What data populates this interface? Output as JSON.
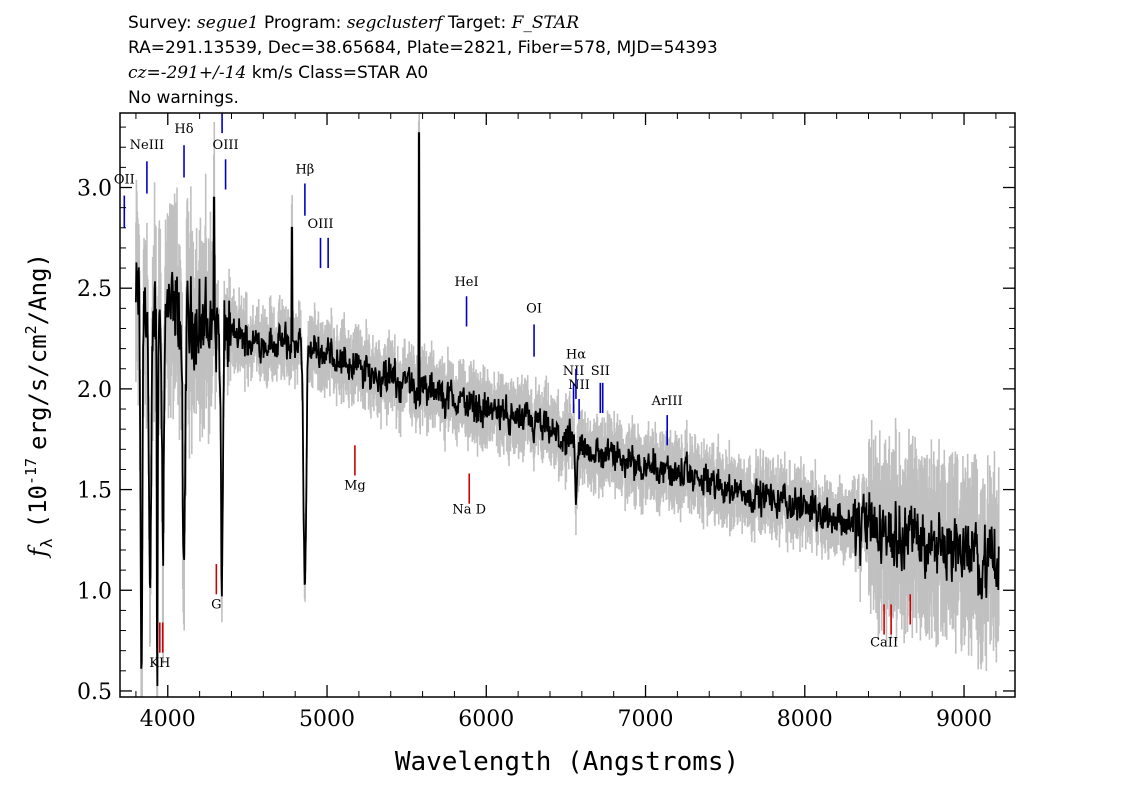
{
  "header": {
    "survey_label": "Survey:",
    "survey": "segue1",
    "program_label": "Program:",
    "program": "segclusterf",
    "target_label": "Target:",
    "target": "F_STAR",
    "line2": "RA=291.13539, Dec=38.65684, Plate=2821, Fiber=578, MJD=54393",
    "cz_label": "cz=",
    "cz_value": "-291+/-14",
    "cz_unit": "km/s Class=STAR A0",
    "warnings": "No warnings."
  },
  "colors": {
    "flux": "#000000",
    "error": "#c0c0c0",
    "emission": "#0000c8",
    "absorption": "#d00000"
  },
  "chart_data": {
    "type": "line",
    "title": "",
    "xlabel": "Wavelength (Angstroms)",
    "ylabel_main": "f",
    "ylabel_sub": "λ",
    "ylabel_rest": "(10",
    "ylabel_exp": "-17",
    "ylabel_unit": "erg/s/cm",
    "ylabel_sq": "2",
    "ylabel_tail": "/Ang)",
    "xlim": [
      3700,
      9320
    ],
    "ylim": [
      0.47,
      3.37
    ],
    "xticks": [
      4000,
      5000,
      6000,
      7000,
      8000,
      9000
    ],
    "xtick_labels": [
      "4000",
      "5000",
      "6000",
      "7000",
      "8000",
      "9000"
    ],
    "yticks": [
      0.5,
      1.0,
      1.5,
      2.0,
      2.5,
      3.0
    ],
    "ytick_labels": [
      "0.5",
      "1.0",
      "1.5",
      "2.0",
      "2.5",
      "3.0"
    ],
    "continuum": [
      [
        3800,
        2.45
      ],
      [
        4000,
        2.38
      ],
      [
        4300,
        2.3
      ],
      [
        4500,
        2.24
      ],
      [
        4800,
        2.22
      ],
      [
        5000,
        2.18
      ],
      [
        5200,
        2.1
      ],
      [
        5500,
        2.02
      ],
      [
        5800,
        1.95
      ],
      [
        6000,
        1.9
      ],
      [
        6300,
        1.82
      ],
      [
        6500,
        1.74
      ],
      [
        6700,
        1.68
      ],
      [
        7000,
        1.63
      ],
      [
        7200,
        1.58
      ],
      [
        7500,
        1.51
      ],
      [
        7800,
        1.45
      ],
      [
        8000,
        1.42
      ],
      [
        8300,
        1.33
      ],
      [
        8600,
        1.28
      ],
      [
        8800,
        1.25
      ],
      [
        9000,
        1.2
      ],
      [
        9200,
        1.12
      ]
    ],
    "absorption_features": [
      [
        3835,
        0.5,
        8
      ],
      [
        3889,
        0.8,
        10
      ],
      [
        3970,
        1.3,
        8
      ],
      [
        4101,
        0.95,
        10
      ],
      [
        4340,
        0.95,
        9
      ],
      [
        4861,
        1.0,
        12
      ],
      [
        6563,
        1.4,
        9
      ],
      [
        3934,
        0.4,
        4
      ]
    ],
    "spikes": [
      [
        5577,
        3.27
      ],
      [
        4290,
        2.95
      ],
      [
        4780,
        2.8
      ]
    ],
    "emission_lines": [
      {
        "label": "OII",
        "wave": 3727,
        "y0": 2.8,
        "y1": 2.96,
        "label_y": 3.02
      },
      {
        "label": "NeIII",
        "wave": 3869,
        "y0": 2.97,
        "y1": 3.13,
        "label_y": 3.19
      },
      {
        "label": "Hδ",
        "wave": 4102,
        "y0": 3.05,
        "y1": 3.21,
        "label_y": 3.27
      },
      {
        "label": "",
        "wave": 4341,
        "y0": 3.27,
        "y1": 3.37,
        "label_y": 0
      },
      {
        "label": "OIII",
        "wave": 4363,
        "y0": 2.99,
        "y1": 3.14,
        "label_y": 3.19
      },
      {
        "label": "Hβ",
        "wave": 4861,
        "y0": 2.86,
        "y1": 3.02,
        "label_y": 3.07
      },
      {
        "label": "OIII",
        "wave": 4959,
        "y0": 2.6,
        "y1": 2.75,
        "label_y": 2.8
      },
      {
        "label": "",
        "wave": 5007,
        "y0": 2.6,
        "y1": 2.75,
        "label_y": 0
      },
      {
        "label": "HeI",
        "wave": 5876,
        "y0": 2.31,
        "y1": 2.46,
        "label_y": 2.51
      },
      {
        "label": "OI",
        "wave": 6300,
        "y0": 2.16,
        "y1": 2.32,
        "label_y": 2.38
      },
      {
        "label": "NII",
        "wave": 6548,
        "y0": 1.88,
        "y1": 2.03,
        "label_y": 2.07
      },
      {
        "label": "Hα",
        "wave": 6563,
        "y0": 1.95,
        "y1": 2.1,
        "label_y": 2.15
      },
      {
        "label": "NII",
        "wave": 6583,
        "y0": 1.85,
        "y1": 1.95,
        "label_y": 2.0
      },
      {
        "label": "SII",
        "wave": 6716,
        "y0": 1.88,
        "y1": 2.03,
        "label_y": 2.07
      },
      {
        "label": "",
        "wave": 6731,
        "y0": 1.88,
        "y1": 2.03,
        "label_y": 0
      },
      {
        "label": "ArIII",
        "wave": 7136,
        "y0": 1.72,
        "y1": 1.87,
        "label_y": 1.92
      }
    ],
    "absorption_lines": [
      {
        "label": "KH",
        "wave": 3950,
        "y0": 0.69,
        "y1": 0.84,
        "label_y": 0.62
      },
      {
        "label": "",
        "wave": 3968,
        "y0": 0.69,
        "y1": 0.84,
        "label_y": 0
      },
      {
        "label": "G",
        "wave": 4305,
        "y0": 0.98,
        "y1": 1.13,
        "label_y": 0.91
      },
      {
        "label": "Mg",
        "wave": 5175,
        "y0": 1.57,
        "y1": 1.72,
        "label_y": 1.5
      },
      {
        "label": "Na D",
        "wave": 5893,
        "y0": 1.43,
        "y1": 1.58,
        "label_y": 1.38
      },
      {
        "label": "CaII",
        "wave": 8498,
        "y0": 0.78,
        "y1": 0.93,
        "label_y": 0.72
      },
      {
        "label": "",
        "wave": 8542,
        "y0": 0.78,
        "y1": 0.93,
        "label_y": 0
      },
      {
        "label": "",
        "wave": 8662,
        "y0": 0.83,
        "y1": 0.98,
        "label_y": 0
      }
    ]
  }
}
